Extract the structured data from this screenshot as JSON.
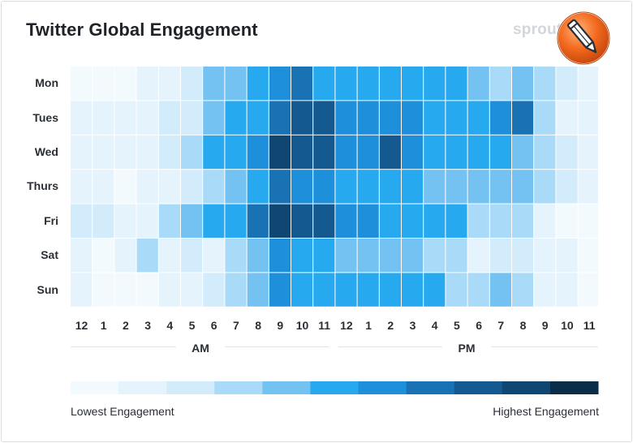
{
  "title": "Twitter Global Engagement",
  "brand": "sprout",
  "badge_icon": "pencil-edit-icon",
  "chart_data": {
    "type": "heatmap",
    "title": "Twitter Global Engagement",
    "rows": [
      "Mon",
      "Tues",
      "Wed",
      "Thurs",
      "Fri",
      "Sat",
      "Sun"
    ],
    "columns": [
      "12",
      "1",
      "2",
      "3",
      "4",
      "5",
      "6",
      "7",
      "8",
      "9",
      "10",
      "11",
      "12",
      "1",
      "2",
      "3",
      "4",
      "5",
      "6",
      "7",
      "8",
      "9",
      "10",
      "11"
    ],
    "period_labels": [
      "AM",
      "PM"
    ],
    "scale_min": 0,
    "scale_max": 11,
    "palette": [
      "#f3fafe",
      "#e4f3fc",
      "#d2ecfb",
      "#a9daf7",
      "#74c2f2",
      "#27a9ef",
      "#1d8fdb",
      "#1872b4",
      "#145a91",
      "#0f4672",
      "#0a2d4a"
    ],
    "values": [
      [
        0,
        0,
        0,
        1,
        1,
        2,
        4,
        4,
        5,
        7,
        8,
        6,
        6,
        6,
        5,
        5,
        5,
        5,
        4,
        3,
        4,
        3,
        2,
        1
      ],
      [
        1,
        1,
        1,
        1,
        2,
        2,
        4,
        5,
        5,
        8,
        9,
        9,
        7,
        7,
        7,
        7,
        6,
        5,
        5,
        7,
        8,
        3,
        1,
        1
      ],
      [
        1,
        1,
        1,
        1,
        2,
        3,
        5,
        6,
        7,
        10,
        9,
        9,
        7,
        7,
        9,
        7,
        6,
        5,
        5,
        6,
        4,
        3,
        2,
        1
      ],
      [
        1,
        1,
        0,
        1,
        1,
        2,
        3,
        4,
        5,
        8,
        7,
        7,
        6,
        5,
        5,
        5,
        4,
        4,
        4,
        4,
        4,
        3,
        2,
        1
      ],
      [
        2,
        2,
        1,
        1,
        3,
        4,
        5,
        6,
        8,
        10,
        9,
        9,
        7,
        7,
        6,
        6,
        5,
        5,
        3,
        3,
        3,
        1,
        0,
        0
      ],
      [
        1,
        0,
        1,
        3,
        1,
        2,
        1,
        3,
        4,
        7,
        6,
        5,
        4,
        4,
        4,
        4,
        3,
        3,
        1,
        2,
        2,
        1,
        1,
        0
      ],
      [
        1,
        0,
        0,
        0,
        1,
        1,
        2,
        3,
        4,
        7,
        5,
        6,
        5,
        5,
        5,
        5,
        6,
        3,
        3,
        4,
        3,
        1,
        1,
        0
      ]
    ],
    "legend": {
      "low_label": "Lowest Engagement",
      "high_label": "Highest Engagement",
      "steps": 11
    }
  }
}
